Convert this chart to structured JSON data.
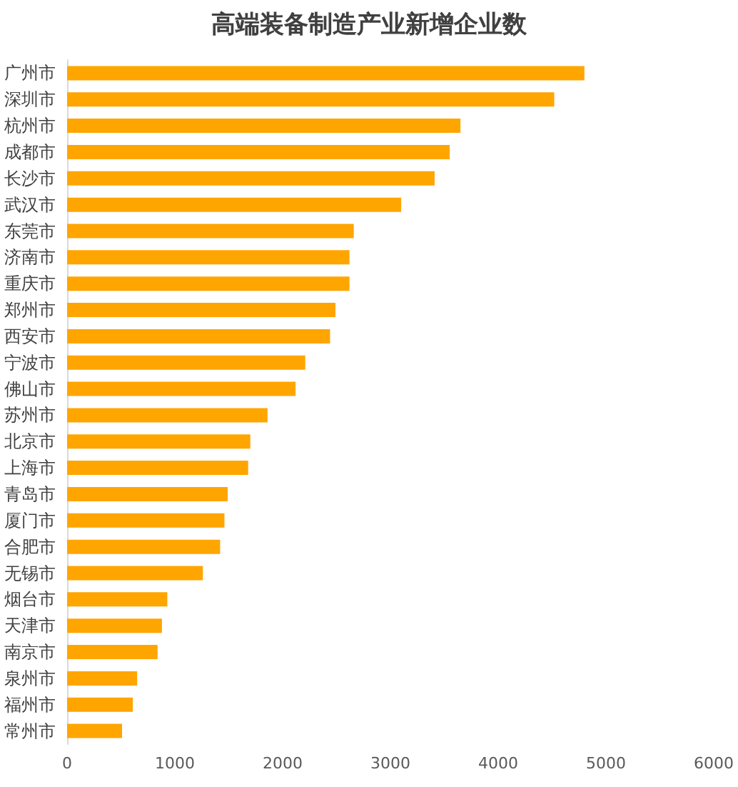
{
  "chart_data": {
    "type": "bar",
    "orientation": "horizontal",
    "title": "高端装备制造产业新增企业数",
    "categories": [
      "广州市",
      "深圳市",
      "杭州市",
      "成都市",
      "长沙市",
      "武汉市",
      "东莞市",
      "济南市",
      "重庆市",
      "郑州市",
      "西安市",
      "宁波市",
      "佛山市",
      "苏州市",
      "北京市",
      "上海市",
      "青岛市",
      "厦门市",
      "合肥市",
      "无锡市",
      "烟台市",
      "天津市",
      "南京市",
      "泉州市",
      "福州市",
      "常州市"
    ],
    "values": [
      4800,
      4520,
      3650,
      3550,
      3410,
      3100,
      2660,
      2620,
      2620,
      2490,
      2440,
      2210,
      2120,
      1860,
      1700,
      1680,
      1490,
      1460,
      1420,
      1260,
      930,
      880,
      840,
      650,
      610,
      510
    ],
    "color": "#ffa500",
    "xlim": [
      0,
      6000
    ],
    "xticks": [
      0,
      1000,
      2000,
      3000,
      4000,
      5000,
      6000
    ],
    "grid": false
  }
}
